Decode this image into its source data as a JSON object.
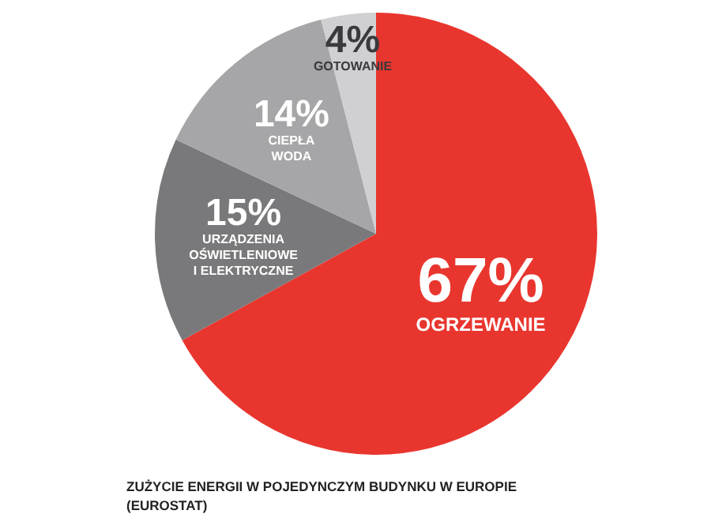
{
  "chart_data": {
    "type": "pie",
    "categories": [
      "OGRZEWANIE",
      "URZĄDZENIA\nOŚWIETLENIOWE\nI ELEKTRYCZNE",
      "CIEPŁA\nWODA",
      "GOTOWANIE"
    ],
    "values": [
      67,
      15,
      14,
      4
    ],
    "colors": [
      "#e8362f",
      "#79797b",
      "#a6a6a8",
      "#d0d0d2"
    ],
    "value_labels": [
      "67%",
      "15%",
      "14%",
      "4%"
    ],
    "legend": false,
    "annotations": [
      "ZUŻYCIE ENERGII W POJEDYNCZYM BUDYNKU W EUROPIE\n(EUROSTAT)"
    ]
  }
}
